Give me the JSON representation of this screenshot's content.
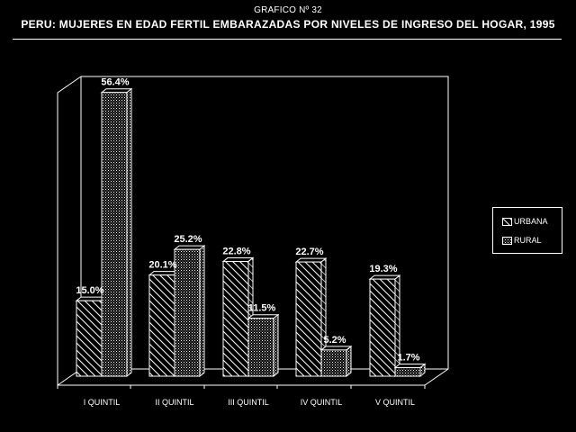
{
  "header": {
    "supertitle": "GRAFICO Nº 32",
    "title": "PERU: MUJERES EN EDAD FERTIL EMBARAZADAS POR NIVELES DE INGRESO DEL HOGAR, 1995"
  },
  "colors": {
    "background": "#000000",
    "foreground": "#ffffff"
  },
  "chart_data": {
    "type": "bar",
    "title": "PERU: MUJERES EN EDAD FERTIL EMBARAZADAS POR NIVELES DE INGRESO DEL HOGAR, 1995",
    "categories": [
      "I QUINTIL",
      "II QUINTIL",
      "III QUINTIL",
      "IV QUINTIL",
      "V QUINTIL"
    ],
    "series": [
      {
        "name": "URBANA",
        "values": [
          15.0,
          20.1,
          22.8,
          22.7,
          19.3
        ],
        "labels": [
          "15.0%",
          "20.1%",
          "22.8%",
          "22.7%",
          "19.3%"
        ],
        "pattern": "diagonal-hatch"
      },
      {
        "name": "RURAL",
        "values": [
          56.4,
          25.2,
          11.5,
          5.2,
          1.7
        ],
        "labels": [
          "56.4%",
          "25.2%",
          "11.5%",
          "5.2%",
          "1.7%"
        ],
        "pattern": "dots"
      }
    ],
    "ylim": [
      0,
      60
    ],
    "grid": false,
    "legend_position": "right",
    "style": "3d"
  },
  "legend": {
    "items": [
      {
        "label": "URBANA",
        "pattern": "diagonal-hatch"
      },
      {
        "label": "RURAL",
        "pattern": "dots"
      }
    ]
  }
}
